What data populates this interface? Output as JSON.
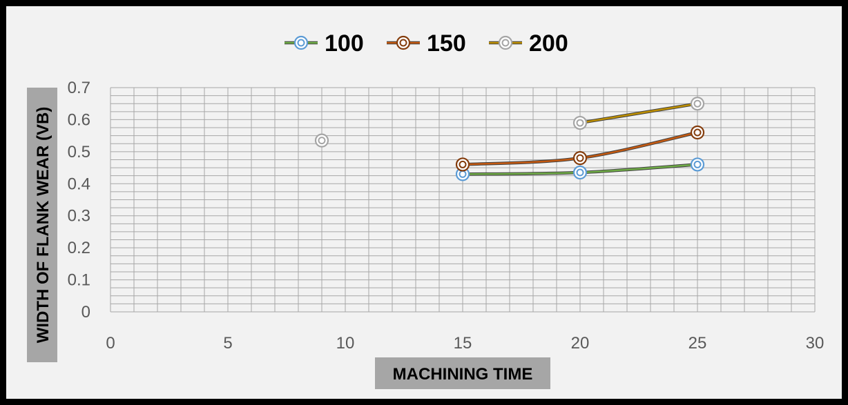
{
  "chart_data": {
    "type": "scatter",
    "title": "",
    "xlabel": "MACHINING TIME",
    "ylabel": "WIDTH OF FLANK WEAR (VB)",
    "xlim": [
      0,
      30
    ],
    "ylim": [
      0,
      0.7
    ],
    "xticks": [
      0,
      5,
      10,
      15,
      20,
      25,
      30
    ],
    "yticks": [
      0,
      0.1,
      0.2,
      0.3,
      0.4,
      0.5,
      0.6,
      0.7
    ],
    "xtick_labels": [
      "0",
      "5",
      "10",
      "15",
      "20",
      "25",
      "30"
    ],
    "ytick_labels": [
      "0",
      "0.1",
      "0.2",
      "0.3",
      "0.4",
      "0.5",
      "0.6",
      "0.7"
    ],
    "grid": true,
    "legend_position": "top",
    "series": [
      {
        "name": "100",
        "color": "#70ad47",
        "marker_color": "#5b9bd5",
        "x": [
          15,
          20,
          25
        ],
        "y": [
          0.43,
          0.435,
          0.46
        ]
      },
      {
        "name": "150",
        "color": "#c55a11",
        "marker_color": "#843c0c",
        "x": [
          15,
          20,
          25
        ],
        "y": [
          0.46,
          0.48,
          0.56
        ]
      },
      {
        "name": "200",
        "color": "#bf9000",
        "marker_color": "#a5a5a5",
        "x": [
          9,
          20,
          25
        ],
        "y": [
          0.535,
          0.59,
          0.65
        ],
        "line_from_index": 1
      }
    ]
  }
}
